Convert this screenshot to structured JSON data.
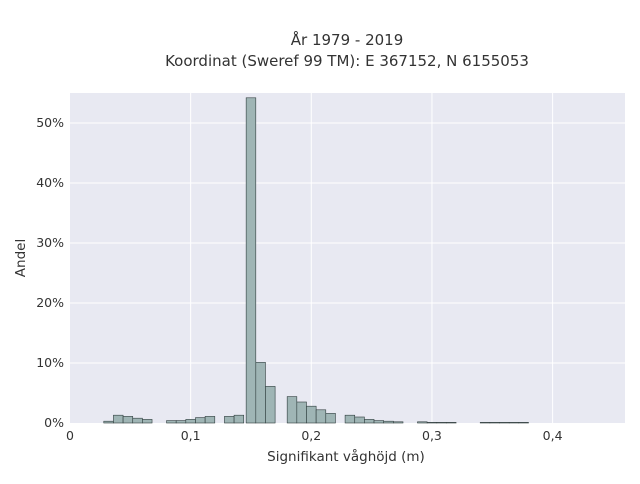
{
  "chart_data": {
    "type": "bar",
    "title": "År 1979 - 2019",
    "subtitle": "Koordinat (Sweref 99 TM): E 367152, N 6155053",
    "xlabel": "Signifikant våghöjd (m)",
    "ylabel": "Andel",
    "xlim": [
      0,
      0.46
    ],
    "ylim": [
      0,
      0.55
    ],
    "x_ticks": [
      {
        "value": 0,
        "label": "0"
      },
      {
        "value": 0.1,
        "label": "0,1"
      },
      {
        "value": 0.2,
        "label": "0,2"
      },
      {
        "value": 0.3,
        "label": "0,3"
      },
      {
        "value": 0.4,
        "label": "0,4"
      }
    ],
    "y_ticks": [
      {
        "value": 0,
        "label": "0%"
      },
      {
        "value": 0.1,
        "label": "10%"
      },
      {
        "value": 0.2,
        "label": "20%"
      },
      {
        "value": 0.3,
        "label": "30%"
      },
      {
        "value": 0.4,
        "label": "40%"
      },
      {
        "value": 0.5,
        "label": "50%"
      }
    ],
    "bin_width": 0.008,
    "grid": true,
    "colors": {
      "plot_bg": "#e8e9f2",
      "grid": "#ffffff",
      "bar_fill": "#9fb5b5",
      "bar_stroke": "#2f3d3d"
    },
    "bins": [
      {
        "x0": 0.028,
        "value": 0.003
      },
      {
        "x0": 0.036,
        "value": 0.013
      },
      {
        "x0": 0.044,
        "value": 0.011
      },
      {
        "x0": 0.052,
        "value": 0.008
      },
      {
        "x0": 0.06,
        "value": 0.006
      },
      {
        "x0": 0.08,
        "value": 0.004
      },
      {
        "x0": 0.088,
        "value": 0.004
      },
      {
        "x0": 0.096,
        "value": 0.006
      },
      {
        "x0": 0.104,
        "value": 0.009
      },
      {
        "x0": 0.112,
        "value": 0.011
      },
      {
        "x0": 0.128,
        "value": 0.011
      },
      {
        "x0": 0.136,
        "value": 0.013
      },
      {
        "x0": 0.146,
        "value": 0.542
      },
      {
        "x0": 0.154,
        "value": 0.101
      },
      {
        "x0": 0.162,
        "value": 0.061
      },
      {
        "x0": 0.18,
        "value": 0.044
      },
      {
        "x0": 0.188,
        "value": 0.035
      },
      {
        "x0": 0.196,
        "value": 0.028
      },
      {
        "x0": 0.204,
        "value": 0.022
      },
      {
        "x0": 0.212,
        "value": 0.016
      },
      {
        "x0": 0.228,
        "value": 0.013
      },
      {
        "x0": 0.236,
        "value": 0.01
      },
      {
        "x0": 0.244,
        "value": 0.006
      },
      {
        "x0": 0.252,
        "value": 0.004
      },
      {
        "x0": 0.26,
        "value": 0.003
      },
      {
        "x0": 0.268,
        "value": 0.002
      },
      {
        "x0": 0.288,
        "value": 0.002
      },
      {
        "x0": 0.296,
        "value": 0.001
      },
      {
        "x0": 0.304,
        "value": 0.001
      },
      {
        "x0": 0.312,
        "value": 0.001
      },
      {
        "x0": 0.34,
        "value": 0.001
      },
      {
        "x0": 0.348,
        "value": 0.001
      },
      {
        "x0": 0.356,
        "value": 0.001
      },
      {
        "x0": 0.364,
        "value": 0.001
      },
      {
        "x0": 0.372,
        "value": 0.001
      }
    ]
  }
}
